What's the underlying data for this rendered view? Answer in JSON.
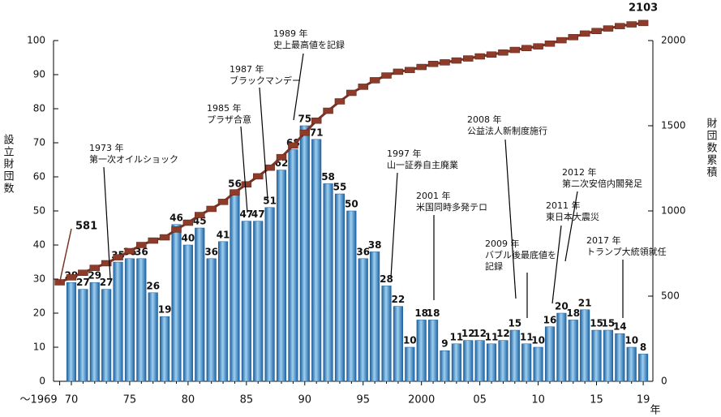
{
  "chart_data": {
    "type": "bar",
    "y_label": "設立財団数",
    "y2_label": "財団数累積",
    "x_unit": "年",
    "categories": [
      "～1969",
      "70",
      null,
      null,
      null,
      null,
      "75",
      null,
      null,
      null,
      null,
      "80",
      null,
      null,
      null,
      null,
      "85",
      null,
      null,
      null,
      null,
      "90",
      null,
      null,
      null,
      null,
      "95",
      null,
      null,
      null,
      null,
      "2000",
      null,
      null,
      null,
      null,
      "05",
      null,
      null,
      null,
      null,
      "10",
      null,
      null,
      null,
      null,
      "15",
      null,
      null,
      null,
      "19"
    ],
    "series": [
      {
        "name": "設立財団数",
        "type": "bar",
        "color": "#2a77b8",
        "values": [
          null,
          29,
          27,
          29,
          27,
          35,
          36,
          36,
          26,
          19,
          46,
          40,
          45,
          36,
          41,
          56,
          47,
          47,
          51,
          62,
          68,
          75,
          71,
          58,
          55,
          50,
          36,
          38,
          28,
          22,
          10,
          18,
          18,
          9,
          11,
          12,
          12,
          11,
          12,
          15,
          11,
          10,
          16,
          20,
          18,
          21,
          15,
          15,
          14,
          10,
          8
        ]
      },
      {
        "name": "財団数累積",
        "type": "line",
        "axis": "y2",
        "color": "#7a3426",
        "values": [
          581,
          610,
          637,
          666,
          693,
          728,
          764,
          800,
          826,
          845,
          891,
          931,
          976,
          1012,
          1053,
          1109,
          1156,
          1203,
          1254,
          1316,
          1384,
          1459,
          1530,
          1588,
          1643,
          1693,
          1729,
          1767,
          1795,
          1817,
          1827,
          1845,
          1863,
          1872,
          1883,
          1895,
          1907,
          1918,
          1930,
          1945,
          1956,
          1966,
          1982,
          2002,
          2020,
          2041,
          2056,
          2071,
          2085,
          2095,
          2103
        ]
      }
    ],
    "ylim": [
      0,
      100
    ],
    "yticks": [
      0,
      10,
      20,
      30,
      40,
      50,
      60,
      70,
      80,
      90,
      100
    ],
    "y2lim": [
      0,
      2000
    ],
    "y2ticks": [
      0,
      500,
      1000,
      1500,
      2000
    ],
    "annotations": [
      {
        "lines": [
          "1973 年",
          "第一次オイルショック"
        ]
      },
      {
        "lines": [
          "1985 年",
          "プラザ合意"
        ]
      },
      {
        "lines": [
          "1987 年",
          "ブラックマンデー"
        ]
      },
      {
        "lines": [
          "1989 年",
          "史上最高値を記録"
        ]
      },
      {
        "lines": [
          "1997 年",
          "山一証券自主廃業"
        ]
      },
      {
        "lines": [
          "2001 年",
          "米国同時多発テロ"
        ]
      },
      {
        "lines": [
          "2008 年",
          "公益法人新制度施行"
        ]
      },
      {
        "lines": [
          "2009 年",
          "バブル後最底値を",
          "記録"
        ]
      },
      {
        "lines": [
          "2011 年",
          "東日本大震災"
        ]
      },
      {
        "lines": [
          "2012 年",
          "第二次安倍内閣発足"
        ]
      },
      {
        "lines": [
          "2017 年",
          "トランプ大統領就任"
        ]
      }
    ]
  }
}
